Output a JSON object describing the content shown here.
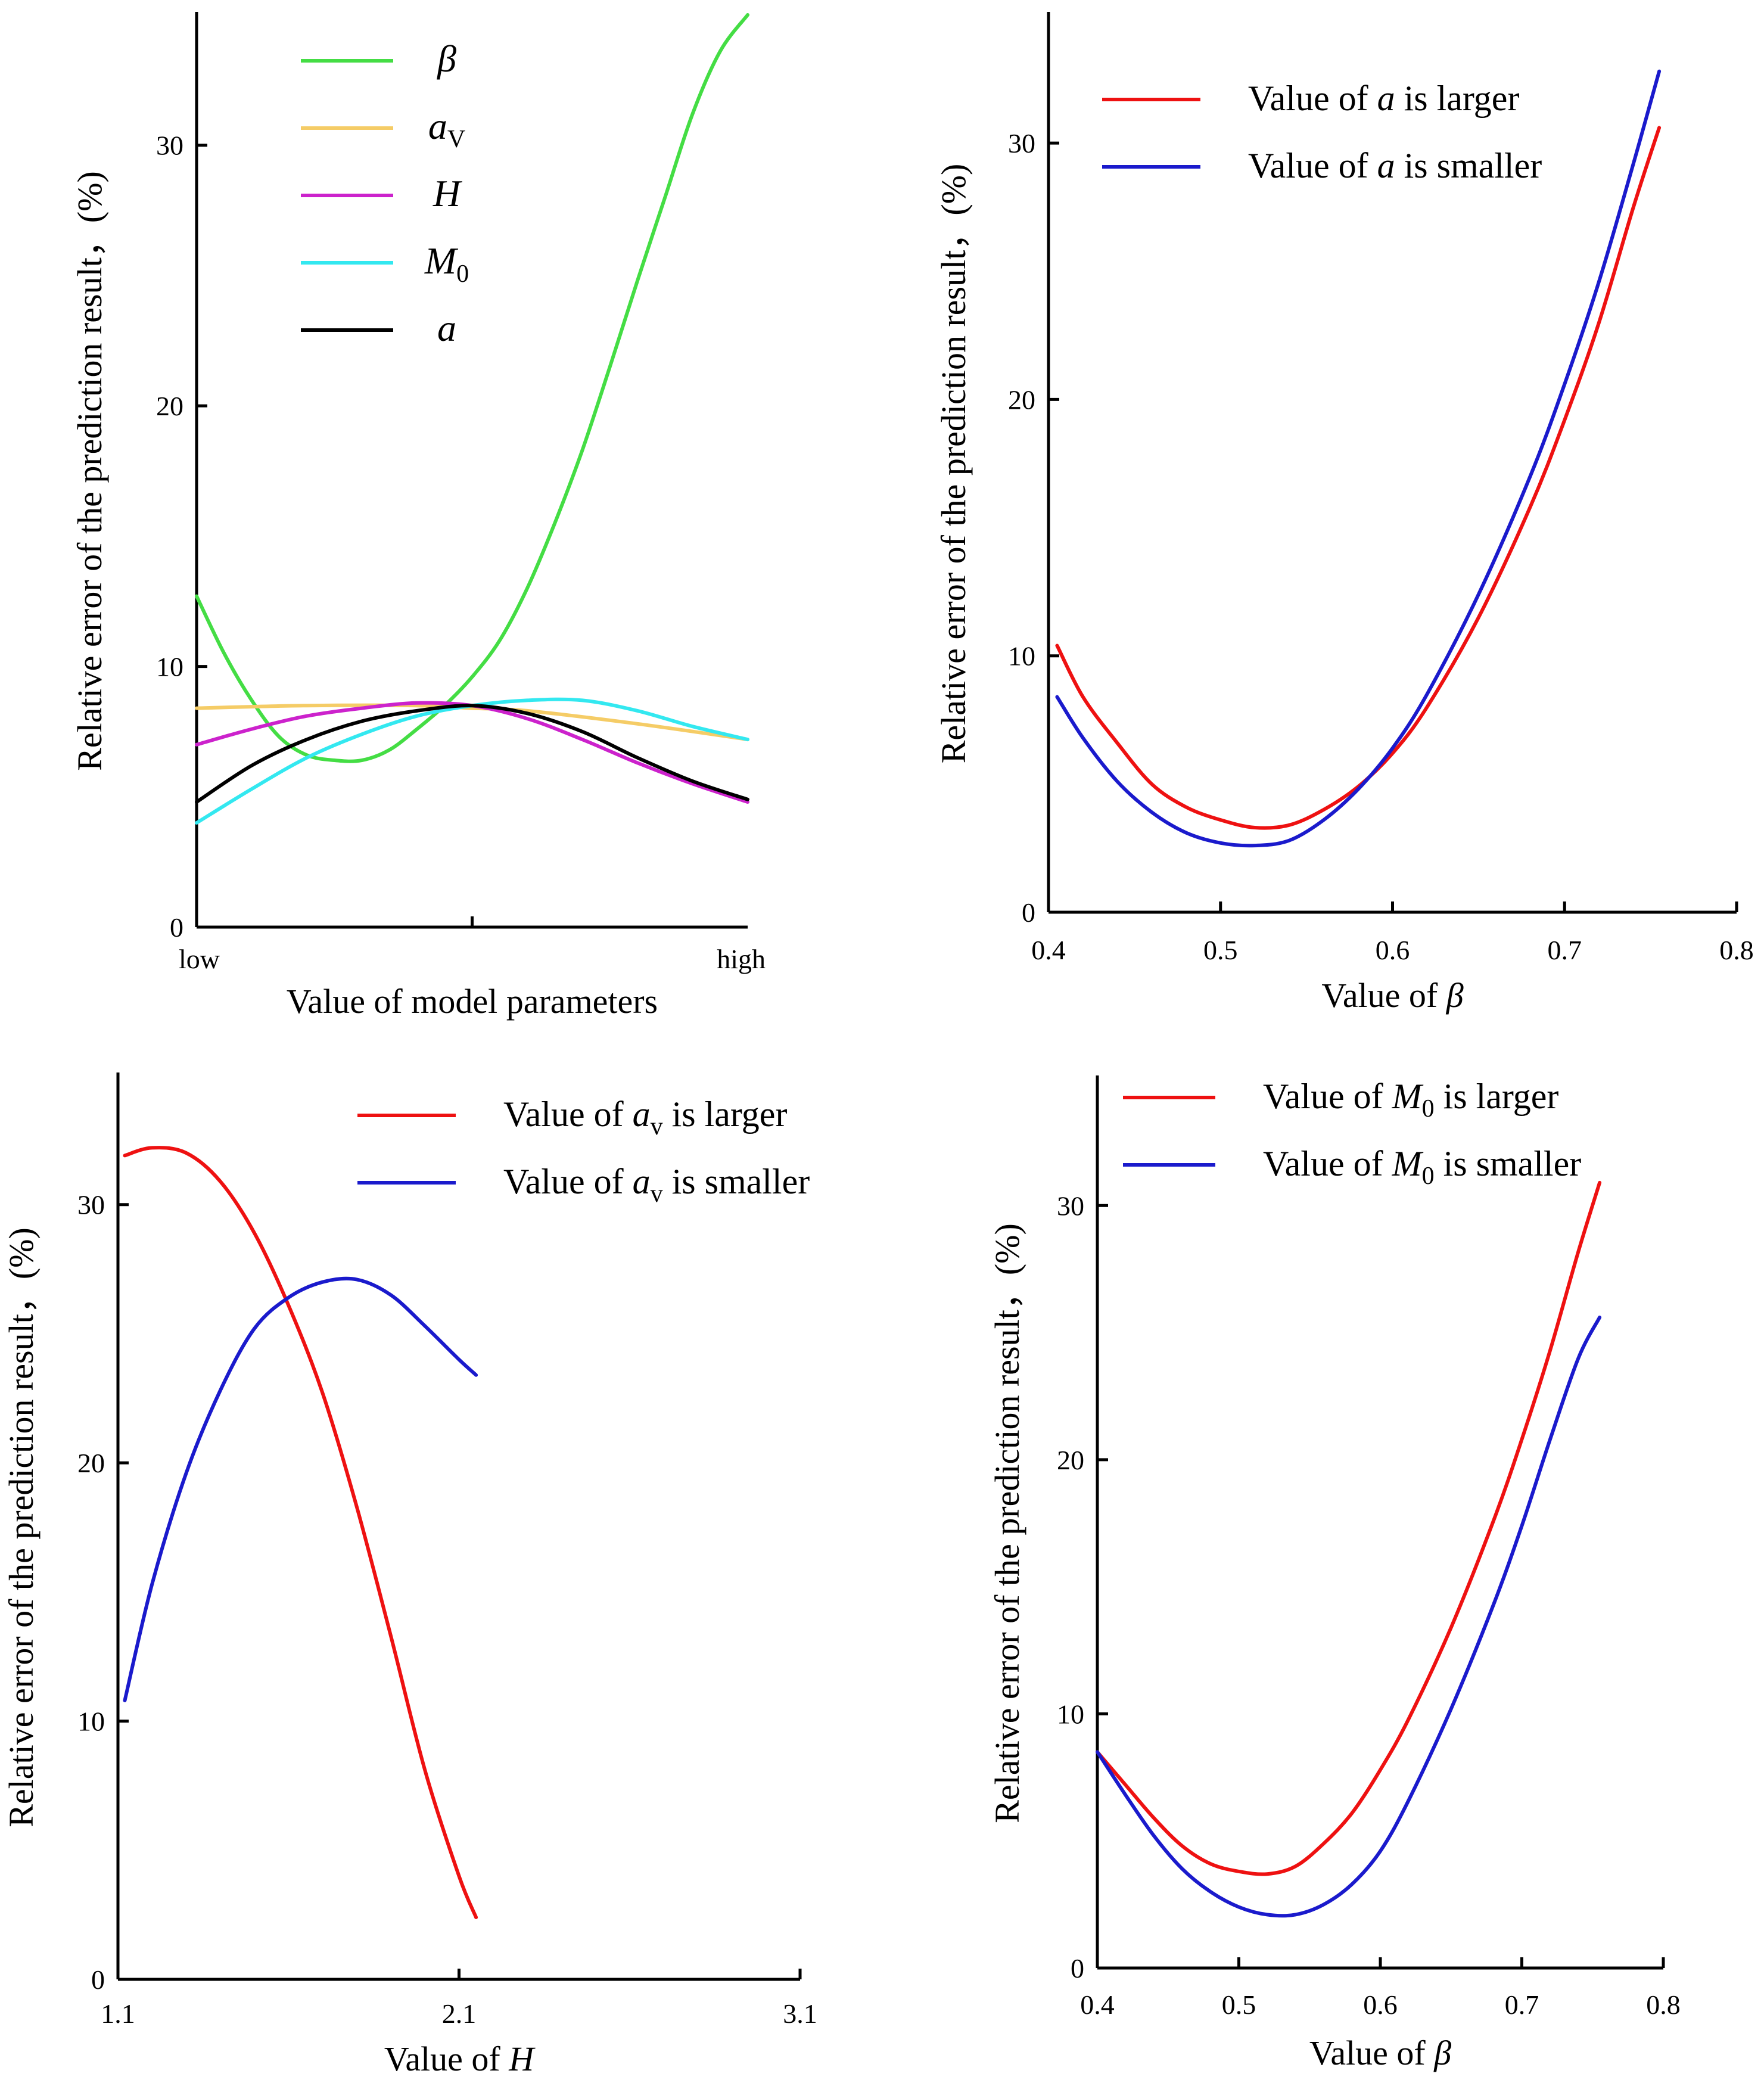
{
  "chart_data": [
    {
      "type": "line",
      "xlabel": "Value of model parameters",
      "ylabel": "Relative error of the prediction result，(%)",
      "x_tick_labels": [
        "low",
        "high"
      ],
      "y_ticks": [
        0,
        10,
        20,
        30
      ],
      "ylim": [
        0,
        35
      ],
      "xlim": [
        0,
        1
      ],
      "legend_position": "top-left",
      "series": [
        {
          "name": "β",
          "name_base": "β",
          "name_sub": "",
          "color": "#44dd44",
          "x": [
            0,
            0.05,
            0.1,
            0.15,
            0.2,
            0.25,
            0.3,
            0.35,
            0.4,
            0.45,
            0.5,
            0.55,
            0.6,
            0.65,
            0.7,
            0.75,
            0.8,
            0.85,
            0.9,
            0.95,
            1.0
          ],
          "y": [
            12.7,
            10.5,
            8.7,
            7.3,
            6.6,
            6.4,
            6.4,
            6.8,
            7.6,
            8.5,
            9.6,
            11.0,
            13.0,
            15.5,
            18.3,
            21.5,
            24.8,
            28.0,
            31.2,
            33.6,
            35.0
          ]
        },
        {
          "name": "aV",
          "name_base": "a",
          "name_sub": "V",
          "color": "#f5cc66",
          "x": [
            0,
            0.2,
            0.4,
            0.5,
            0.6,
            0.8,
            1.0
          ],
          "y": [
            8.4,
            8.5,
            8.5,
            8.4,
            8.3,
            7.8,
            7.2
          ]
        },
        {
          "name": "H",
          "name_base": "H",
          "name_sub": "",
          "color": "#cc22cc",
          "x": [
            0,
            0.1,
            0.2,
            0.3,
            0.4,
            0.5,
            0.6,
            0.7,
            0.8,
            0.9,
            1.0
          ],
          "y": [
            7.0,
            7.6,
            8.1,
            8.4,
            8.6,
            8.5,
            8.0,
            7.2,
            6.3,
            5.5,
            4.8
          ]
        },
        {
          "name": "M0",
          "name_base": "M",
          "name_sub": "0",
          "color": "#33e8f0",
          "x": [
            0,
            0.1,
            0.2,
            0.3,
            0.4,
            0.5,
            0.6,
            0.7,
            0.8,
            0.9,
            1.0
          ],
          "y": [
            4.0,
            5.3,
            6.5,
            7.4,
            8.1,
            8.5,
            8.7,
            8.7,
            8.3,
            7.7,
            7.2
          ]
        },
        {
          "name": "a",
          "name_base": "a",
          "name_sub": "",
          "color": "#000000",
          "x": [
            0,
            0.1,
            0.2,
            0.3,
            0.4,
            0.5,
            0.6,
            0.7,
            0.8,
            0.9,
            1.0
          ],
          "y": [
            4.8,
            6.2,
            7.2,
            7.9,
            8.3,
            8.5,
            8.2,
            7.5,
            6.5,
            5.6,
            4.9
          ]
        }
      ]
    },
    {
      "type": "line",
      "xlabel": "Value of β",
      "ylabel": "Relative error of the prediction result，(%)",
      "x_ticks": [
        0.4,
        0.5,
        0.6,
        0.7,
        0.8
      ],
      "x_tick_labels": [
        "0.4",
        "0.5",
        "0.6",
        "0.7",
        "0.8"
      ],
      "y_ticks": [
        0,
        10,
        20,
        30
      ],
      "xlim": [
        0.4,
        0.8
      ],
      "ylim": [
        0,
        35
      ],
      "legend_position": "top-left",
      "series": [
        {
          "name": "Value of a is larger",
          "name_pre": "Value of ",
          "name_sym": "a",
          "name_sub": "",
          "name_post": " is larger",
          "color": "#ee1111",
          "x": [
            0.405,
            0.42,
            0.44,
            0.46,
            0.48,
            0.5,
            0.52,
            0.54,
            0.56,
            0.58,
            0.6,
            0.62,
            0.65,
            0.68,
            0.7,
            0.72,
            0.74,
            0.755
          ],
          "y": [
            10.4,
            8.4,
            6.6,
            5.0,
            4.1,
            3.6,
            3.3,
            3.4,
            4.0,
            4.9,
            6.2,
            8.0,
            11.5,
            15.8,
            19.2,
            23.0,
            27.5,
            30.6
          ]
        },
        {
          "name": "Value of a is smaller",
          "name_pre": "Value of ",
          "name_sym": "a",
          "name_sub": "",
          "name_post": " is smaller",
          "color": "#1a1acc",
          "x": [
            0.405,
            0.42,
            0.44,
            0.46,
            0.48,
            0.5,
            0.52,
            0.54,
            0.56,
            0.58,
            0.6,
            0.62,
            0.65,
            0.68,
            0.7,
            0.72,
            0.74,
            0.755
          ],
          "y": [
            8.4,
            6.8,
            5.1,
            3.9,
            3.1,
            2.7,
            2.6,
            2.8,
            3.6,
            4.8,
            6.4,
            8.5,
            12.4,
            17.0,
            20.6,
            24.6,
            29.2,
            32.8
          ]
        }
      ]
    },
    {
      "type": "line",
      "xlabel": "Value of H",
      "ylabel": "Relative error of the prediction result，(%)",
      "x_ticks": [
        1.1,
        2.1,
        3.1
      ],
      "x_tick_labels": [
        "1.1",
        "2.1",
        "3.1"
      ],
      "y_ticks": [
        0,
        10,
        20,
        30
      ],
      "xlim": [
        1.1,
        3.1
      ],
      "ylim": [
        0,
        35
      ],
      "legend_position": "top-right",
      "series": [
        {
          "name": "Value of av is larger",
          "name_pre": "Value of ",
          "name_sym": "a",
          "name_sub": "v",
          "name_post": " is larger",
          "color": "#ee1111",
          "x": [
            1.12,
            1.2,
            1.3,
            1.4,
            1.5,
            1.6,
            1.7,
            1.8,
            1.9,
            2.0,
            2.1,
            2.15
          ],
          "y": [
            31.9,
            32.2,
            32.0,
            30.9,
            28.9,
            26.1,
            22.7,
            18.3,
            13.3,
            8.1,
            4.0,
            2.4
          ]
        },
        {
          "name": "Value of av is smaller",
          "name_pre": "Value of ",
          "name_sym": "a",
          "name_sub": "v",
          "name_post": " is smaller",
          "color": "#1a1acc",
          "x": [
            1.12,
            1.2,
            1.3,
            1.4,
            1.5,
            1.6,
            1.7,
            1.8,
            1.9,
            2.0,
            2.1,
            2.15
          ],
          "y": [
            10.8,
            15.3,
            19.6,
            22.8,
            25.2,
            26.4,
            27.0,
            27.1,
            26.5,
            25.3,
            24.0,
            23.4
          ]
        }
      ]
    },
    {
      "type": "line",
      "xlabel": "Value of β",
      "ylabel": "Relative error of the prediction result，(%)",
      "x_ticks": [
        0.4,
        0.5,
        0.6,
        0.7,
        0.8
      ],
      "x_tick_labels": [
        "0.4",
        "0.5",
        "0.6",
        "0.7",
        "0.8"
      ],
      "y_ticks": [
        0,
        10,
        20,
        30
      ],
      "xlim": [
        0.4,
        0.8
      ],
      "ylim": [
        0,
        35
      ],
      "legend_position": "top-left",
      "series": [
        {
          "name": "Value of M0 is larger",
          "name_pre": "Value of ",
          "name_sym": "M",
          "name_sub": "0",
          "name_post": " is larger",
          "color": "#ee1111",
          "x": [
            0.4,
            0.42,
            0.44,
            0.46,
            0.48,
            0.5,
            0.52,
            0.54,
            0.56,
            0.58,
            0.6,
            0.62,
            0.65,
            0.68,
            0.7,
            0.72,
            0.74,
            0.755
          ],
          "y": [
            8.5,
            7.2,
            5.9,
            4.8,
            4.1,
            3.8,
            3.7,
            4.0,
            4.9,
            6.1,
            7.8,
            9.8,
            13.4,
            17.6,
            20.8,
            24.3,
            28.2,
            30.9
          ]
        },
        {
          "name": "Value of M0 is smaller",
          "name_pre": "Value of ",
          "name_sym": "M",
          "name_sub": "0",
          "name_post": " is smaller",
          "color": "#1a1acc",
          "x": [
            0.4,
            0.42,
            0.44,
            0.46,
            0.48,
            0.5,
            0.52,
            0.54,
            0.56,
            0.58,
            0.6,
            0.62,
            0.65,
            0.68,
            0.7,
            0.72,
            0.74,
            0.755
          ],
          "y": [
            8.5,
            6.8,
            5.2,
            3.9,
            3.0,
            2.4,
            2.1,
            2.1,
            2.5,
            3.3,
            4.6,
            6.6,
            10.2,
            14.3,
            17.4,
            20.8,
            24.0,
            25.6
          ]
        }
      ]
    }
  ]
}
